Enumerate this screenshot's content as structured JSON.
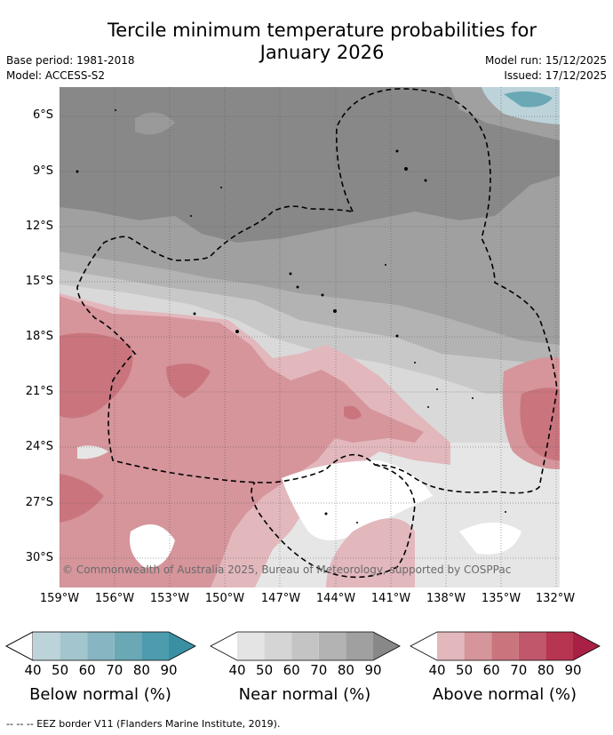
{
  "header": {
    "title_line1": "Tercile minimum temperature probabilities for",
    "title_line2": "January 2026",
    "base_period": "Base period: 1981-2018",
    "model": "Model: ACCESS-S2",
    "model_run": "Model run: 15/12/2025",
    "issued": "Issued: 17/12/2025"
  },
  "map": {
    "lat_labels": [
      "6°S",
      "9°S",
      "12°S",
      "15°S",
      "18°S",
      "21°S",
      "24°S",
      "27°S",
      "30°S"
    ],
    "lon_labels": [
      "159°W",
      "156°W",
      "153°W",
      "150°W",
      "147°W",
      "144°W",
      "141°W",
      "138°W",
      "135°W",
      "132°W"
    ],
    "copyright": "© Commonwealth of Australia 2025, Bureau of Meteorology, supported by COSPPac"
  },
  "legend": {
    "below": {
      "caption": "Below normal (%)",
      "ticks": [
        "40",
        "50",
        "60",
        "70",
        "80",
        "90"
      ],
      "colors": [
        "#bdd3da",
        "#a3c5cd",
        "#87b5c1",
        "#6aa8b5",
        "#4c9cae",
        "#3a8fa3"
      ]
    },
    "near": {
      "caption": "Near normal (%)",
      "ticks": [
        "40",
        "50",
        "60",
        "70",
        "80",
        "90"
      ],
      "colors": [
        "#e4e4e4",
        "#d5d5d5",
        "#c4c4c4",
        "#b3b3b3",
        "#a0a0a0",
        "#888888"
      ]
    },
    "above": {
      "caption": "Above normal (%)",
      "ticks": [
        "40",
        "50",
        "60",
        "70",
        "80",
        "90"
      ],
      "colors": [
        "#e2b8bd",
        "#d5959b",
        "#ca757e",
        "#c0576a",
        "#b73550",
        "#a82044"
      ]
    }
  },
  "footer": {
    "eez_note": "-- -- -- EEZ border V11 (Flanders Marine Institute, 2019)."
  }
}
